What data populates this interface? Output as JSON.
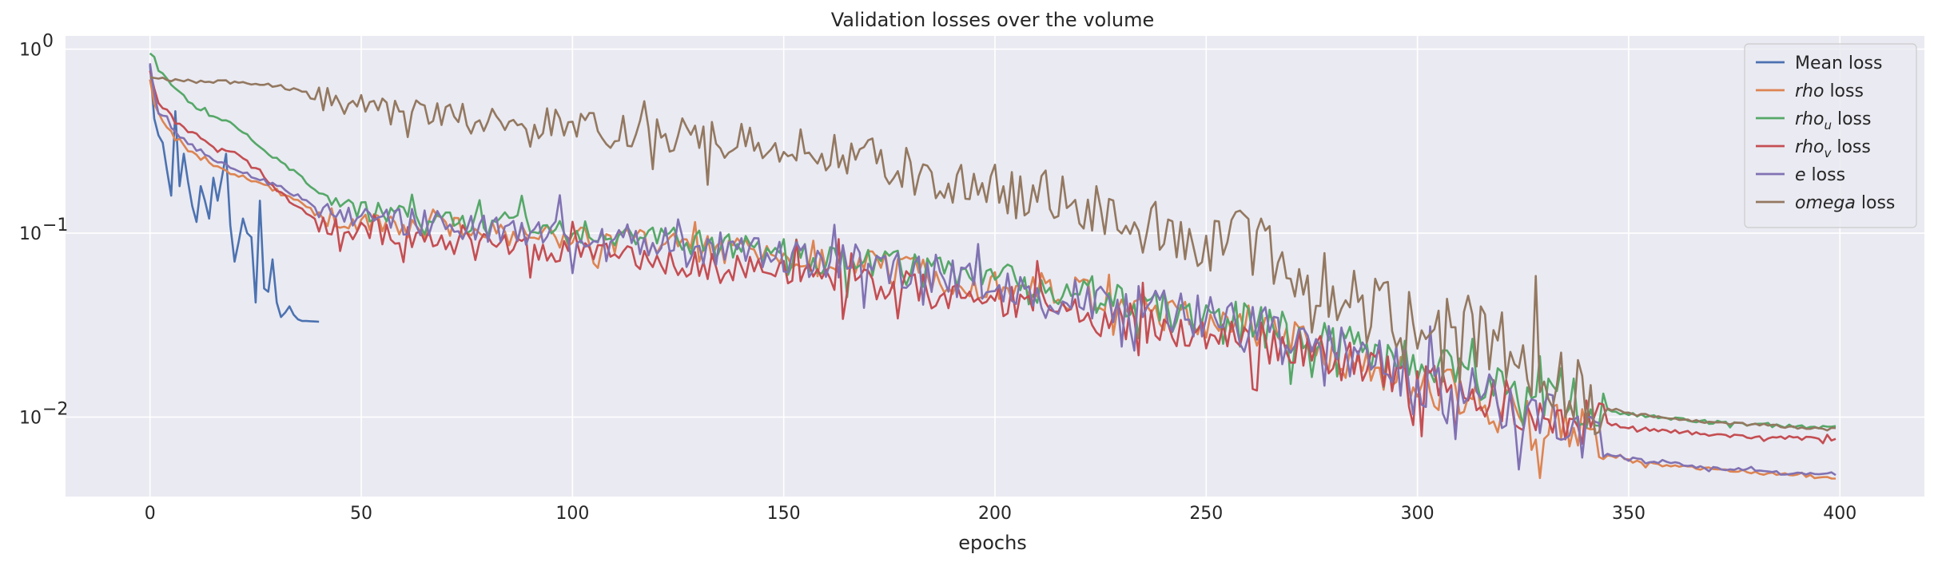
{
  "chart_data": {
    "type": "line",
    "title": "Validation losses over the volume",
    "xlabel": "epochs",
    "ylabel": "",
    "xlim": [
      -20,
      420
    ],
    "ylim": [
      0.0037,
      1.18
    ],
    "yscale": "log",
    "grid": true,
    "legend_position": "top-right",
    "x_ticks": [
      0,
      50,
      100,
      150,
      200,
      250,
      300,
      350,
      400
    ],
    "y_ticks": [
      {
        "value": 1,
        "base": "10",
        "exp": "0"
      },
      {
        "value": 0.1,
        "base": "10",
        "exp": "−1"
      },
      {
        "value": 0.01,
        "base": "10",
        "exp": "−2"
      }
    ],
    "colors": {
      "background": "#eaeaf2",
      "grid": "#ffffff",
      "mean": "#4c72b0",
      "rho": "#dd8452",
      "rho_u": "#55a868",
      "rho_v": "#c44e52",
      "e": "#8172b3",
      "omega": "#937860"
    },
    "series": [
      {
        "name": "Mean loss",
        "legend_italic": "",
        "legend_sub": "",
        "legend_suffix": "Mean loss",
        "color": "#4c72b0",
        "x": [
          0,
          1,
          2,
          3,
          4,
          5,
          6,
          7,
          8,
          9,
          10,
          11,
          12,
          13,
          14,
          15,
          16,
          17,
          18,
          19,
          20,
          21,
          22,
          23,
          24,
          25,
          26,
          27,
          28,
          29,
          30,
          31,
          32,
          33,
          34,
          35,
          36,
          37,
          38,
          39,
          40
        ],
        "y": [
          0.82,
          0.42,
          0.34,
          0.31,
          0.22,
          0.16,
          0.46,
          0.18,
          0.27,
          0.19,
          0.14,
          0.115,
          0.18,
          0.15,
          0.12,
          0.2,
          0.15,
          0.2,
          0.27,
          0.11,
          0.07,
          0.09,
          0.12,
          0.1,
          0.095,
          0.042,
          0.15,
          0.05,
          0.048,
          0.072,
          0.042,
          0.035,
          0.037,
          0.04,
          0.036,
          0.034,
          0.0333,
          0.0333,
          0.0332,
          0.0331,
          0.033
        ]
      },
      {
        "name": "rho loss",
        "legend_italic": "rho",
        "legend_sub": "",
        "legend_suffix": " loss",
        "color": "#dd8452",
        "anchors": [
          [
            0,
            0.7
          ],
          [
            1,
            0.5
          ],
          [
            2,
            0.44
          ],
          [
            4,
            0.38
          ],
          [
            6,
            0.32
          ],
          [
            10,
            0.27
          ],
          [
            15,
            0.235
          ],
          [
            20,
            0.21
          ],
          [
            25,
            0.19
          ],
          [
            30,
            0.17
          ],
          [
            35,
            0.15
          ],
          [
            40,
            0.125
          ],
          [
            45,
            0.115
          ],
          [
            50,
            0.112
          ],
          [
            60,
            0.108
          ],
          [
            70,
            0.106
          ],
          [
            80,
            0.1
          ],
          [
            90,
            0.098
          ],
          [
            100,
            0.097
          ],
          [
            110,
            0.092
          ],
          [
            120,
            0.088
          ],
          [
            130,
            0.082
          ],
          [
            140,
            0.078
          ],
          [
            150,
            0.074
          ],
          [
            160,
            0.07
          ],
          [
            170,
            0.066
          ],
          [
            180,
            0.062
          ],
          [
            190,
            0.058
          ],
          [
            200,
            0.053
          ],
          [
            210,
            0.05
          ],
          [
            220,
            0.046
          ],
          [
            230,
            0.042
          ],
          [
            240,
            0.036
          ],
          [
            250,
            0.033
          ],
          [
            260,
            0.03
          ],
          [
            270,
            0.026
          ],
          [
            280,
            0.022
          ],
          [
            290,
            0.018
          ],
          [
            300,
            0.0155
          ],
          [
            310,
            0.0135
          ],
          [
            320,
            0.0115
          ],
          [
            330,
            0.0095
          ],
          [
            340,
            0.0082
          ],
          [
            344,
            0.0075
          ],
          [
            345,
            0.0062
          ],
          [
            350,
            0.0058
          ],
          [
            360,
            0.0054
          ],
          [
            370,
            0.0052
          ],
          [
            380,
            0.005
          ],
          [
            390,
            0.0048
          ],
          [
            399,
            0.0047
          ]
        ]
      },
      {
        "name": "rho_u loss",
        "legend_italic": "rho",
        "legend_sub": "u",
        "legend_suffix": " loss",
        "color": "#55a868",
        "anchors": [
          [
            0,
            0.95
          ],
          [
            1,
            0.9
          ],
          [
            2,
            0.78
          ],
          [
            4,
            0.7
          ],
          [
            6,
            0.6
          ],
          [
            10,
            0.5
          ],
          [
            15,
            0.43
          ],
          [
            20,
            0.39
          ],
          [
            25,
            0.31
          ],
          [
            30,
            0.25
          ],
          [
            35,
            0.21
          ],
          [
            40,
            0.165
          ],
          [
            45,
            0.14
          ],
          [
            50,
            0.13
          ],
          [
            60,
            0.125
          ],
          [
            70,
            0.118
          ],
          [
            80,
            0.112
          ],
          [
            90,
            0.11
          ],
          [
            100,
            0.105
          ],
          [
            110,
            0.1
          ],
          [
            120,
            0.095
          ],
          [
            130,
            0.088
          ],
          [
            140,
            0.082
          ],
          [
            150,
            0.078
          ],
          [
            160,
            0.072
          ],
          [
            170,
            0.068
          ],
          [
            180,
            0.064
          ],
          [
            190,
            0.06
          ],
          [
            200,
            0.055
          ],
          [
            210,
            0.052
          ],
          [
            220,
            0.048
          ],
          [
            230,
            0.044
          ],
          [
            240,
            0.04
          ],
          [
            250,
            0.035
          ],
          [
            260,
            0.032
          ],
          [
            270,
            0.029
          ],
          [
            280,
            0.025
          ],
          [
            290,
            0.022
          ],
          [
            300,
            0.019
          ],
          [
            310,
            0.017
          ],
          [
            320,
            0.015
          ],
          [
            330,
            0.0135
          ],
          [
            340,
            0.0118
          ],
          [
            345,
            0.0108
          ],
          [
            350,
            0.0104
          ],
          [
            360,
            0.0098
          ],
          [
            370,
            0.0094
          ],
          [
            380,
            0.0091
          ],
          [
            390,
            0.0089
          ],
          [
            399,
            0.0088
          ]
        ]
      },
      {
        "name": "rho_v loss",
        "legend_italic": "rho",
        "legend_sub": "v",
        "legend_suffix": " loss",
        "color": "#c44e52",
        "anchors": [
          [
            0,
            0.78
          ],
          [
            1,
            0.6
          ],
          [
            2,
            0.5
          ],
          [
            4,
            0.46
          ],
          [
            6,
            0.4
          ],
          [
            10,
            0.35
          ],
          [
            15,
            0.3
          ],
          [
            20,
            0.28
          ],
          [
            25,
            0.22
          ],
          [
            30,
            0.17
          ],
          [
            35,
            0.14
          ],
          [
            40,
            0.115
          ],
          [
            45,
            0.105
          ],
          [
            50,
            0.1
          ],
          [
            60,
            0.095
          ],
          [
            70,
            0.09
          ],
          [
            80,
            0.085
          ],
          [
            90,
            0.082
          ],
          [
            100,
            0.08
          ],
          [
            110,
            0.078
          ],
          [
            120,
            0.072
          ],
          [
            130,
            0.068
          ],
          [
            140,
            0.064
          ],
          [
            150,
            0.06
          ],
          [
            160,
            0.057
          ],
          [
            170,
            0.054
          ],
          [
            180,
            0.05
          ],
          [
            190,
            0.046
          ],
          [
            200,
            0.042
          ],
          [
            210,
            0.04
          ],
          [
            220,
            0.037
          ],
          [
            230,
            0.034
          ],
          [
            240,
            0.031
          ],
          [
            250,
            0.028
          ],
          [
            260,
            0.026
          ],
          [
            270,
            0.024
          ],
          [
            280,
            0.021
          ],
          [
            290,
            0.018
          ],
          [
            300,
            0.016
          ],
          [
            310,
            0.0138
          ],
          [
            320,
            0.012
          ],
          [
            330,
            0.0105
          ],
          [
            340,
            0.0095
          ],
          [
            350,
            0.0088
          ],
          [
            360,
            0.0084
          ],
          [
            370,
            0.008
          ],
          [
            380,
            0.0078
          ],
          [
            390,
            0.0077
          ],
          [
            399,
            0.0076
          ]
        ]
      },
      {
        "name": "e loss",
        "legend_italic": "e",
        "legend_sub": "",
        "legend_suffix": " loss",
        "color": "#8172b3",
        "anchors": [
          [
            0,
            0.85
          ],
          [
            1,
            0.55
          ],
          [
            2,
            0.45
          ],
          [
            4,
            0.42
          ],
          [
            6,
            0.35
          ],
          [
            10,
            0.3
          ],
          [
            15,
            0.25
          ],
          [
            20,
            0.22
          ],
          [
            25,
            0.2
          ],
          [
            30,
            0.18
          ],
          [
            35,
            0.16
          ],
          [
            40,
            0.135
          ],
          [
            45,
            0.125
          ],
          [
            50,
            0.12
          ],
          [
            60,
            0.115
          ],
          [
            70,
            0.11
          ],
          [
            80,
            0.105
          ],
          [
            90,
            0.105
          ],
          [
            100,
            0.1
          ],
          [
            110,
            0.098
          ],
          [
            120,
            0.092
          ],
          [
            130,
            0.085
          ],
          [
            140,
            0.08
          ],
          [
            150,
            0.076
          ],
          [
            160,
            0.072
          ],
          [
            170,
            0.068
          ],
          [
            180,
            0.064
          ],
          [
            190,
            0.058
          ],
          [
            200,
            0.054
          ],
          [
            210,
            0.05
          ],
          [
            220,
            0.046
          ],
          [
            230,
            0.042
          ],
          [
            240,
            0.037
          ],
          [
            250,
            0.034
          ],
          [
            260,
            0.031
          ],
          [
            270,
            0.027
          ],
          [
            280,
            0.023
          ],
          [
            290,
            0.019
          ],
          [
            300,
            0.0165
          ],
          [
            310,
            0.0138
          ],
          [
            320,
            0.012
          ],
          [
            330,
            0.01
          ],
          [
            340,
            0.0085
          ],
          [
            344,
            0.0078
          ],
          [
            345,
            0.0064
          ],
          [
            350,
            0.006
          ],
          [
            360,
            0.0056
          ],
          [
            370,
            0.0053
          ],
          [
            380,
            0.0051
          ],
          [
            390,
            0.0049
          ],
          [
            399,
            0.0049
          ]
        ]
      },
      {
        "name": "omega loss",
        "legend_italic": "omega",
        "legend_sub": "",
        "legend_suffix": " loss",
        "color": "#937860",
        "anchors": [
          [
            0,
            0.7
          ],
          [
            5,
            0.68
          ],
          [
            10,
            0.67
          ],
          [
            20,
            0.66
          ],
          [
            25,
            0.65
          ],
          [
            30,
            0.63
          ],
          [
            35,
            0.6
          ],
          [
            40,
            0.55
          ],
          [
            45,
            0.52
          ],
          [
            50,
            0.5
          ],
          [
            55,
            0.47
          ],
          [
            60,
            0.45
          ],
          [
            70,
            0.43
          ],
          [
            80,
            0.41
          ],
          [
            90,
            0.4
          ],
          [
            100,
            0.38
          ],
          [
            110,
            0.36
          ],
          [
            120,
            0.34
          ],
          [
            130,
            0.33
          ],
          [
            140,
            0.31
          ],
          [
            150,
            0.3
          ],
          [
            160,
            0.27
          ],
          [
            170,
            0.25
          ],
          [
            180,
            0.22
          ],
          [
            190,
            0.19
          ],
          [
            200,
            0.17
          ],
          [
            210,
            0.16
          ],
          [
            220,
            0.14
          ],
          [
            230,
            0.12
          ],
          [
            240,
            0.1
          ],
          [
            250,
            0.09
          ],
          [
            260,
            0.09
          ],
          [
            270,
            0.07
          ],
          [
            280,
            0.05
          ],
          [
            290,
            0.038
          ],
          [
            300,
            0.035
          ],
          [
            310,
            0.032
          ],
          [
            320,
            0.025
          ],
          [
            330,
            0.018
          ],
          [
            335,
            0.015
          ],
          [
            340,
            0.013
          ],
          [
            345,
            0.0112
          ],
          [
            350,
            0.0105
          ],
          [
            360,
            0.0098
          ],
          [
            370,
            0.0094
          ],
          [
            380,
            0.0091
          ],
          [
            390,
            0.0088
          ],
          [
            399,
            0.0086
          ]
        ]
      }
    ]
  }
}
